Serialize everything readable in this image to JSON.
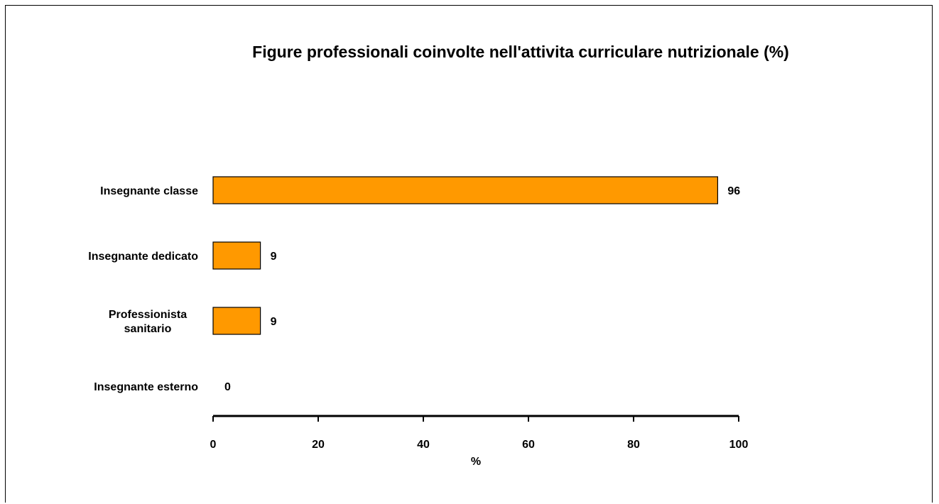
{
  "chart_data": {
    "type": "bar",
    "orientation": "horizontal",
    "title": "Figure professionali coinvolte nell'attivita curriculare nutrizionale (%)",
    "categories": [
      [
        "Insegnante classe"
      ],
      [
        "Insegnante dedicato"
      ],
      [
        "Professionista",
        "sanitario"
      ],
      [
        "Insegnante esterno"
      ]
    ],
    "values": [
      96,
      9,
      9,
      0
    ],
    "xlabel": "%",
    "ylabel": "",
    "xlim": [
      0,
      100
    ],
    "xticks": [
      0,
      20,
      40,
      60,
      80,
      100
    ],
    "grid": false,
    "legend": "none",
    "bar_color": "#FF9900",
    "bar_edge_color": "#000000"
  }
}
